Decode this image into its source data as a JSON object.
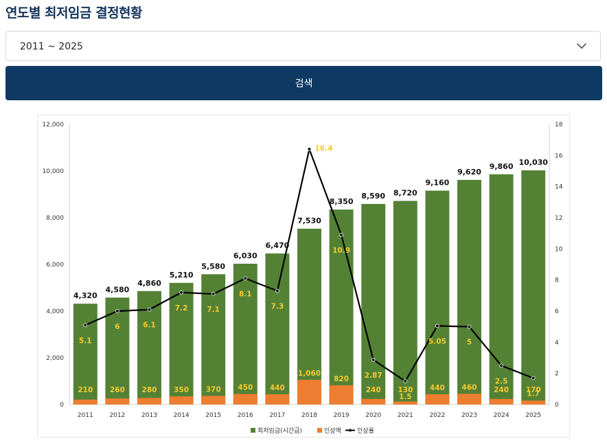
{
  "header": {
    "title": "연도별 최저임금 결정현황"
  },
  "filter": {
    "selected": "2011 ~ 2025",
    "search_label": "검색"
  },
  "colors": {
    "primary": "#0d3963",
    "bar_total": "#548235",
    "bar_increase": "#ed7d31",
    "line": "#000000",
    "label_yellow": "#f2cb2e"
  },
  "chart_data": {
    "type": "bar",
    "title": "",
    "categories": [
      "2011",
      "2012",
      "2013",
      "2014",
      "2015",
      "2016",
      "2017",
      "2018",
      "2019",
      "2020",
      "2021",
      "2022",
      "2023",
      "2024",
      "2025"
    ],
    "series": [
      {
        "name": "최저임금(시간급)",
        "type": "bar",
        "axis": "left",
        "values": [
          4320,
          4580,
          4860,
          5210,
          5580,
          6030,
          6470,
          7530,
          8350,
          8590,
          8720,
          9160,
          9620,
          9860,
          10030
        ],
        "labels": [
          "4,320",
          "4,580",
          "4,860",
          "5,210",
          "5,580",
          "6,030",
          "6,470",
          "7,530",
          "8,350",
          "8,590",
          "8,720",
          "9,160",
          "9,620",
          "9,860",
          "10,030"
        ]
      },
      {
        "name": "인상액",
        "type": "bar",
        "axis": "left",
        "values": [
          210,
          260,
          280,
          350,
          370,
          450,
          440,
          1060,
          820,
          240,
          130,
          440,
          460,
          240,
          170
        ],
        "labels": [
          "210",
          "260",
          "280",
          "350",
          "370",
          "450",
          "440",
          "1,060",
          "820",
          "240",
          "130",
          "440",
          "460",
          "240",
          "170"
        ]
      },
      {
        "name": "인상률",
        "type": "line",
        "axis": "right",
        "values": [
          5.1,
          6,
          6.1,
          7.2,
          7.1,
          8.1,
          7.3,
          16.4,
          10.9,
          2.87,
          1.5,
          5.05,
          5,
          2.5,
          1.7
        ],
        "labels": [
          "5.1",
          "6",
          "6.1",
          "7.2",
          "7.1",
          "8.1",
          "7.3",
          "16.4",
          "10.9",
          "2.87",
          "1.5",
          "5.05",
          "5",
          "2.5",
          "1.7"
        ]
      }
    ],
    "ylim": [
      0,
      12000
    ],
    "y_ticks": [
      "0",
      "2,000",
      "4,000",
      "6,000",
      "8,000",
      "10,000",
      "12,000"
    ],
    "y2lim": [
      0,
      18
    ],
    "y2_ticks": [
      "0",
      "2",
      "4",
      "6",
      "8",
      "10",
      "12",
      "14",
      "16",
      "18"
    ],
    "legend": {
      "position": "bottom",
      "items": [
        "최저임금(시간급)",
        "인상액",
        "인상률"
      ]
    }
  }
}
